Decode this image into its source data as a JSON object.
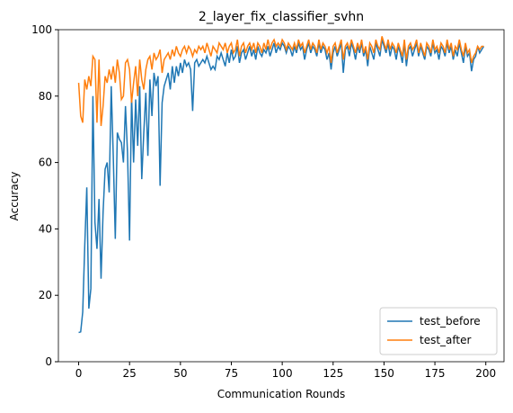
{
  "chart_data": {
    "type": "line",
    "title": "2_layer_fix_classifier_svhn",
    "xlabel": "Communication Rounds",
    "ylabel": "Accuracy",
    "x": [
      0,
      1,
      2,
      3,
      4,
      5,
      6,
      7,
      8,
      9,
      10,
      11,
      12,
      13,
      14,
      15,
      16,
      17,
      18,
      19,
      20,
      21,
      22,
      23,
      24,
      25,
      26,
      27,
      28,
      29,
      30,
      31,
      32,
      33,
      34,
      35,
      36,
      37,
      38,
      39,
      40,
      41,
      42,
      43,
      44,
      45,
      46,
      47,
      48,
      49,
      50,
      51,
      52,
      53,
      54,
      55,
      56,
      57,
      58,
      59,
      60,
      61,
      62,
      63,
      64,
      65,
      66,
      67,
      68,
      69,
      70,
      71,
      72,
      73,
      74,
      75,
      76,
      77,
      78,
      79,
      80,
      81,
      82,
      83,
      84,
      85,
      86,
      87,
      88,
      89,
      90,
      91,
      92,
      93,
      94,
      95,
      96,
      97,
      98,
      99,
      100,
      101,
      102,
      103,
      104,
      105,
      106,
      107,
      108,
      109,
      110,
      111,
      112,
      113,
      114,
      115,
      116,
      117,
      118,
      119,
      120,
      121,
      122,
      123,
      124,
      125,
      126,
      127,
      128,
      129,
      130,
      131,
      132,
      133,
      134,
      135,
      136,
      137,
      138,
      139,
      140,
      141,
      142,
      143,
      144,
      145,
      146,
      147,
      148,
      149,
      150,
      151,
      152,
      153,
      154,
      155,
      156,
      157,
      158,
      159,
      160,
      161,
      162,
      163,
      164,
      165,
      166,
      167,
      168,
      169,
      170,
      171,
      172,
      173,
      174,
      175,
      176,
      177,
      178,
      179,
      180,
      181,
      182,
      183,
      184,
      185,
      186,
      187,
      188,
      189,
      190,
      191,
      192,
      193,
      194,
      195,
      196,
      197,
      198,
      199
    ],
    "series": [
      {
        "name": "test_before",
        "color": "#1f77b4",
        "values": [
          8.8,
          9,
          15,
          35,
          52.5,
          16,
          22,
          80,
          42,
          34,
          49,
          25,
          45,
          58,
          60,
          51,
          83,
          62,
          37,
          69,
          67,
          66,
          60,
          77,
          63,
          36.5,
          80,
          60,
          79,
          65,
          83,
          55,
          69,
          81,
          62,
          85,
          74,
          87,
          83,
          86,
          53,
          78,
          83,
          85,
          87,
          82,
          89,
          84,
          89,
          86,
          90,
          87,
          91,
          89,
          90,
          88,
          75.5,
          90,
          91,
          89,
          90,
          91,
          90,
          92,
          90,
          88,
          89,
          88,
          92,
          91,
          93,
          91,
          89,
          93,
          90,
          94,
          91,
          92,
          95,
          90,
          93,
          94,
          91,
          93,
          95,
          92,
          94,
          91,
          95,
          93,
          92,
          94,
          93,
          95,
          92,
          94,
          96,
          93,
          95,
          94,
          96,
          95,
          93,
          95,
          94,
          92,
          95,
          93,
          96,
          94,
          95,
          91,
          94,
          96,
          93,
          95,
          94,
          92,
          96,
          93,
          95,
          94,
          91,
          93,
          88,
          93,
          95,
          92,
          94,
          96,
          87,
          94,
          95,
          92,
          96,
          94,
          91,
          95,
          93,
          96,
          92,
          94,
          89,
          95,
          93,
          91,
          96,
          94,
          92,
          97,
          95,
          93,
          96,
          92,
          95,
          94,
          91,
          95,
          93,
          90,
          96,
          89,
          94,
          95,
          92,
          94,
          96,
          92,
          95,
          93,
          91,
          95,
          94,
          92,
          96,
          93,
          94,
          91,
          95,
          94,
          92,
          96,
          93,
          95,
          91,
          94,
          92,
          96,
          93,
          90,
          95,
          92,
          93,
          87.5,
          91,
          92,
          95,
          93,
          94,
          95
        ]
      },
      {
        "name": "test_after",
        "color": "#ff7f0e",
        "values": [
          84,
          74,
          72,
          85,
          82,
          86,
          83,
          92,
          91,
          72,
          91,
          71,
          77,
          86,
          84,
          88,
          85,
          89,
          84,
          91,
          87,
          79,
          80,
          90,
          91,
          88,
          78,
          84,
          89,
          80,
          91,
          85,
          82,
          88,
          91,
          92,
          88,
          93,
          91,
          92,
          94,
          87,
          91,
          92,
          93,
          91,
          94,
          92,
          95,
          93,
          92,
          94,
          95,
          93,
          95,
          94,
          92,
          94,
          93,
          95,
          94,
          95,
          93,
          96,
          94,
          92,
          95,
          94,
          93,
          96,
          95,
          94,
          96,
          93,
          95,
          96,
          93,
          94,
          97,
          92,
          95,
          96,
          93,
          95,
          96,
          94,
          96,
          93,
          96,
          95,
          93,
          96,
          94,
          97,
          94,
          96,
          97,
          95,
          96,
          95,
          97,
          96,
          94,
          96,
          95,
          94,
          96,
          94,
          97,
          95,
          96,
          93,
          95,
          97,
          94,
          96,
          95,
          93,
          97,
          94,
          96,
          95,
          93,
          95,
          90,
          95,
          96,
          93,
          95,
          97,
          91,
          95,
          96,
          94,
          97,
          95,
          93,
          96,
          94,
          97,
          93,
          95,
          91,
          96,
          95,
          93,
          97,
          95,
          94,
          98,
          96,
          94,
          97,
          94,
          96,
          95,
          93,
          96,
          94,
          92,
          97,
          91,
          95,
          96,
          94,
          95,
          97,
          93,
          96,
          94,
          92,
          96,
          95,
          93,
          97,
          94,
          95,
          93,
          96,
          95,
          93,
          97,
          94,
          96,
          92,
          95,
          94,
          97,
          94,
          92,
          96,
          93,
          94,
          90,
          92,
          93,
          95,
          94,
          95,
          95
        ]
      }
    ],
    "xlim": [
      -9.95,
      208.95
    ],
    "xticks": [
      0,
      25,
      50,
      75,
      100,
      125,
      150,
      175,
      200
    ],
    "ylim": [
      0,
      100
    ],
    "yticks": [
      0,
      20,
      40,
      60,
      80,
      100
    ],
    "legend": "lower right"
  }
}
